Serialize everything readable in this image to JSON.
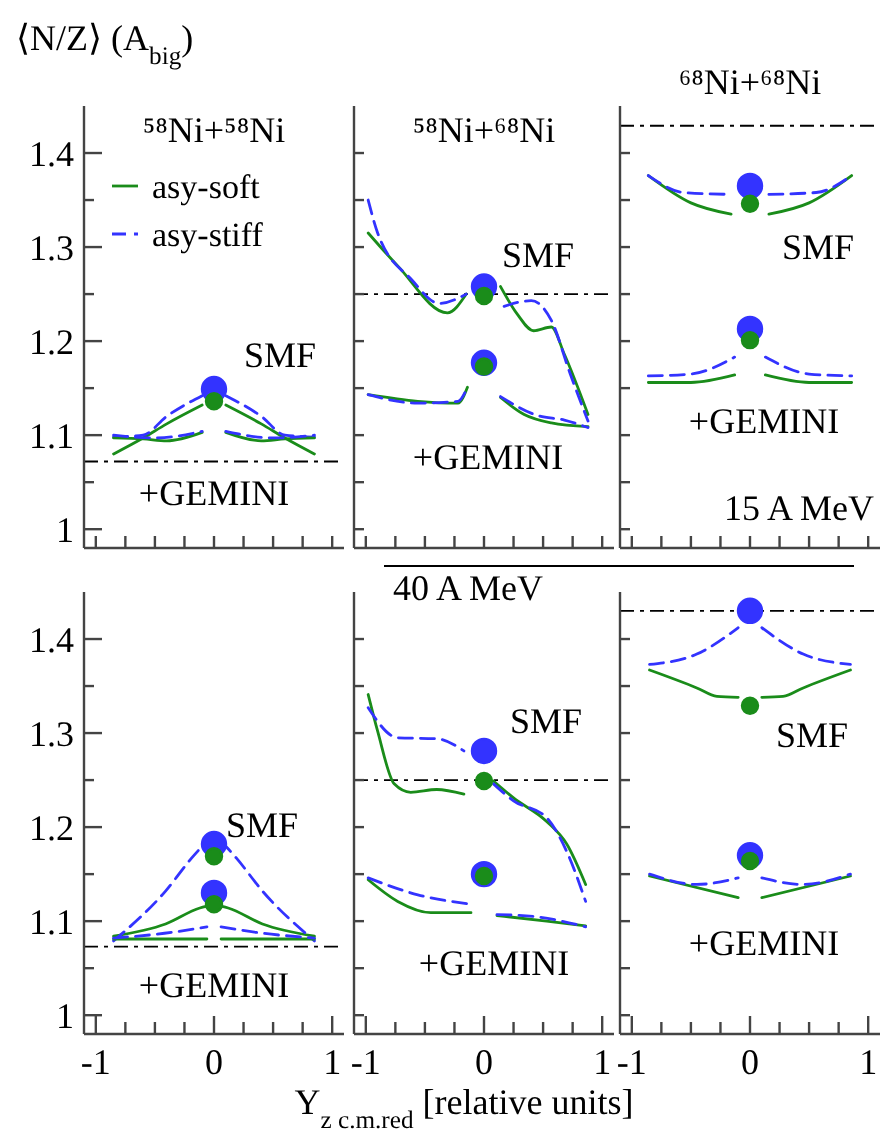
{
  "chart_data": [
    {
      "type": "line",
      "title": "⁵⁸Ni+⁵⁸Ni",
      "ylabel": "⟨N/Z⟩ (A$_{big}$)",
      "xlim": [
        -1.1,
        1.1
      ],
      "ylim": [
        0.98,
        1.45
      ],
      "xticks": [
        {
          "value": -1,
          "label": null
        },
        {
          "value": -0.75,
          "label": null
        },
        {
          "value": -0.5,
          "label": null
        },
        {
          "value": -0.25,
          "label": null
        },
        {
          "value": 0,
          "label": null
        },
        {
          "value": 0.25,
          "label": null
        },
        {
          "value": 0.5,
          "label": null
        },
        {
          "value": 0.75,
          "label": null
        },
        {
          "value": 1,
          "label": null
        }
      ],
      "yticks": [
        1,
        {
          "value": 1.05,
          "label": null
        },
        1.1,
        {
          "value": 1.15,
          "label": null
        },
        1.2,
        {
          "value": 1.25,
          "label": null
        },
        1.3,
        {
          "value": 1.35,
          "label": null
        },
        1.4
      ],
      "tick_labels": "y",
      "legend": "top left",
      "ref_lines": [
        {
          "axis": "y",
          "value": 1.072,
          "line_style": "dashed",
          "color": "#000000"
        }
      ],
      "annotations": [
        "SMF",
        "+GEMINI"
      ],
      "series": [
        {
          "name": "asy-soft",
          "color": "#1a8c1a",
          "x": [
            -0.85,
            -0.6,
            -0.4,
            -0.1,
            0,
            0.1,
            0.4,
            0.6,
            0.85
          ],
          "values": [
            1.08,
            1.097,
            1.112,
            1.132,
            null,
            1.132,
            1.112,
            1.097,
            1.08
          ]
        },
        {
          "name": "asy-stiff",
          "color": "#3333ff",
          "line_style": "dashed",
          "x": [
            -0.85,
            -0.6,
            -0.4,
            -0.1,
            0,
            0.1,
            0.4,
            0.6,
            0.85
          ],
          "values": [
            1.098,
            1.1,
            1.12,
            1.142,
            null,
            1.142,
            1.12,
            1.1,
            1.098
          ]
        },
        {
          "color": "#1a8c1a",
          "x": [
            -0.85,
            -0.6,
            -0.4,
            -0.1,
            0,
            0.1,
            0.4,
            0.6,
            0.85
          ],
          "values": [
            1.097,
            1.096,
            1.094,
            1.103,
            null,
            1.103,
            1.094,
            1.096,
            1.097
          ]
        },
        {
          "color": "#3333ff",
          "line_style": "dashed",
          "x": [
            -0.85,
            -0.5,
            -0.1,
            0,
            0.1,
            0.5,
            0.85
          ],
          "values": [
            1.1,
            1.097,
            1.104,
            null,
            1.104,
            1.097,
            1.1
          ]
        },
        {
          "type": "scatter",
          "marker": "circle",
          "color": "#3333ff",
          "x": [
            0
          ],
          "values": [
            1.149
          ]
        },
        {
          "type": "scatter",
          "marker": "circle",
          "color": "#1a8c1a",
          "x": [
            0
          ],
          "values": [
            1.136
          ]
        }
      ]
    },
    {
      "type": "line",
      "title": "⁵⁸Ni+⁶⁸Ni",
      "xlim": [
        -1.1,
        1.1
      ],
      "ylim": [
        0.98,
        1.45
      ],
      "xticks": [
        {
          "value": -1,
          "label": null
        },
        {
          "value": -0.75,
          "label": null
        },
        {
          "value": -0.5,
          "label": null
        },
        {
          "value": -0.25,
          "label": null
        },
        {
          "value": 0,
          "label": null
        },
        {
          "value": 0.25,
          "label": null
        },
        {
          "value": 0.5,
          "label": null
        },
        {
          "value": 0.75,
          "label": null
        },
        {
          "value": 1,
          "label": null
        }
      ],
      "yticks": [
        {
          "value": 1,
          "label": null
        },
        {
          "value": 1.05,
          "label": null
        },
        {
          "value": 1.1,
          "label": null
        },
        {
          "value": 1.15,
          "label": null
        },
        {
          "value": 1.2,
          "label": null
        },
        {
          "value": 1.25,
          "label": null
        },
        {
          "value": 1.3,
          "label": null
        },
        {
          "value": 1.35,
          "label": null
        },
        {
          "value": 1.4,
          "label": null
        }
      ],
      "tick_labels": false,
      "ref_lines": [
        {
          "axis": "y",
          "value": 1.25,
          "line_style": "dashed",
          "color": "#000000"
        }
      ],
      "annotations": [
        "SMF",
        "+GEMINI"
      ],
      "series": [
        {
          "color": "#1a8c1a",
          "x": [
            -0.98,
            -0.73,
            -0.31,
            -0.15,
            0,
            0.14,
            0.28,
            0.42,
            0.57,
            0.68,
            0.88
          ],
          "values": [
            1.315,
            1.28,
            1.23,
            1.25,
            null,
            1.258,
            1.229,
            1.211,
            1.215,
            1.186,
            1.122
          ]
        },
        {
          "color": "#3333ff",
          "line_style": "dashed",
          "x": [
            -0.98,
            -0.9,
            -0.61,
            -0.38,
            -0.15,
            0,
            0.17,
            0.4,
            0.57,
            0.73,
            0.88
          ],
          "values": [
            1.35,
            1.315,
            1.265,
            1.24,
            1.25,
            null,
            1.237,
            1.243,
            1.222,
            1.165,
            1.115
          ]
        },
        {
          "color": "#1a8c1a",
          "x": [
            -0.98,
            -0.56,
            -0.22,
            -0.14,
            0,
            0.14,
            0.34,
            0.57,
            0.88
          ],
          "values": [
            1.143,
            1.136,
            1.134,
            1.151,
            null,
            1.14,
            1.122,
            1.113,
            1.109
          ]
        },
        {
          "color": "#3333ff",
          "line_style": "dashed",
          "x": [
            -0.98,
            -0.56,
            -0.22,
            -0.14,
            0,
            0.14,
            0.45,
            0.68,
            0.88
          ],
          "values": [
            1.143,
            1.134,
            1.136,
            1.151,
            null,
            1.141,
            1.121,
            1.116,
            1.108
          ]
        },
        {
          "type": "scatter",
          "marker": "circle",
          "color": "#3333ff",
          "x": [
            0,
            0
          ],
          "values": [
            1.258,
            1.177
          ]
        },
        {
          "type": "scatter",
          "marker": "circle",
          "color": "#1a8c1a",
          "x": [
            0,
            0
          ],
          "values": [
            1.248,
            1.173
          ]
        }
      ]
    },
    {
      "type": "line",
      "title": "⁶⁸Ni+⁶⁸Ni",
      "xlim": [
        -1.1,
        1.1
      ],
      "ylim": [
        0.98,
        1.45
      ],
      "xticks": [
        {
          "value": -1,
          "label": null
        },
        {
          "value": -0.75,
          "label": null
        },
        {
          "value": -0.5,
          "label": null
        },
        {
          "value": -0.25,
          "label": null
        },
        {
          "value": 0,
          "label": null
        },
        {
          "value": 0.25,
          "label": null
        },
        {
          "value": 0.5,
          "label": null
        },
        {
          "value": 0.75,
          "label": null
        },
        {
          "value": 1,
          "label": null
        }
      ],
      "yticks": [
        {
          "value": 1,
          "label": null
        },
        {
          "value": 1.05,
          "label": null
        },
        {
          "value": 1.1,
          "label": null
        },
        {
          "value": 1.15,
          "label": null
        },
        {
          "value": 1.2,
          "label": null
        },
        {
          "value": 1.25,
          "label": null
        },
        {
          "value": 1.3,
          "label": null
        },
        {
          "value": 1.35,
          "label": null
        },
        {
          "value": 1.4,
          "label": null
        }
      ],
      "tick_labels": false,
      "ref_lines": [
        {
          "axis": "y",
          "value": 1.429,
          "line_style": "dashed",
          "color": "#000000"
        }
      ],
      "annotations": [
        "SMF",
        "+GEMINI",
        "15 A MeV"
      ],
      "series": [
        {
          "color": "#1a8c1a",
          "x": [
            -0.86,
            -0.5,
            -0.16,
            0,
            0.16,
            0.5,
            0.86
          ],
          "values": [
            1.376,
            1.347,
            1.335,
            null,
            1.335,
            1.347,
            1.376
          ]
        },
        {
          "color": "#3333ff",
          "line_style": "dashed",
          "x": [
            -0.86,
            -0.56,
            -0.16,
            0,
            0.16,
            0.56,
            0.86
          ],
          "values": [
            1.376,
            1.358,
            1.356,
            null,
            1.356,
            1.358,
            1.376
          ]
        },
        {
          "color": "#1a8c1a",
          "x": [
            -0.86,
            -0.5,
            -0.13,
            0,
            0.13,
            0.5,
            0.86
          ],
          "values": [
            1.156,
            1.156,
            1.164,
            null,
            1.164,
            1.156,
            1.156
          ]
        },
        {
          "color": "#3333ff",
          "line_style": "dashed",
          "x": [
            -0.86,
            -0.5,
            -0.13,
            0,
            0.13,
            0.5,
            0.86
          ],
          "values": [
            1.163,
            1.165,
            1.183,
            null,
            1.183,
            1.165,
            1.163
          ]
        },
        {
          "type": "scatter",
          "marker": "circle",
          "color": "#3333ff",
          "x": [
            0,
            0
          ],
          "values": [
            1.365,
            1.213
          ]
        },
        {
          "type": "scatter",
          "marker": "circle",
          "color": "#1a8c1a",
          "x": [
            0,
            0
          ],
          "values": [
            1.346,
            1.201
          ]
        }
      ]
    },
    {
      "type": "line",
      "xlim": [
        -1.1,
        1.1
      ],
      "ylim": [
        0.98,
        1.45
      ],
      "xticks": [
        {
          "value": -1,
          "label": "-1"
        },
        {
          "value": -0.75,
          "label": null
        },
        {
          "value": -0.5,
          "label": null
        },
        {
          "value": -0.25,
          "label": null
        },
        {
          "value": 0,
          "label": "0"
        },
        {
          "value": 0.25,
          "label": null
        },
        {
          "value": 0.5,
          "label": null
        },
        {
          "value": 0.75,
          "label": null
        },
        {
          "value": 1,
          "label": "1"
        }
      ],
      "yticks": [
        1,
        {
          "value": 1.05,
          "label": null
        },
        1.1,
        {
          "value": 1.15,
          "label": null
        },
        1.2,
        {
          "value": 1.25,
          "label": null
        },
        1.3,
        {
          "value": 1.35,
          "label": null
        },
        1.4
      ],
      "ref_lines": [
        {
          "axis": "y",
          "value": 1.073,
          "line_style": "dashed",
          "color": "#000000"
        }
      ],
      "annotations": [
        "SMF",
        "+GEMINI"
      ],
      "series": [
        {
          "color": "#1a8c1a",
          "x": [
            -0.85,
            -0.41,
            -0.12,
            -0.06,
            0,
            0.06,
            0.12,
            0.41,
            0.85
          ],
          "values": [
            1.084,
            1.097,
            1.114,
            1.116,
            null,
            1.116,
            1.114,
            1.097,
            1.084
          ]
        },
        {
          "color": "#3333ff",
          "line_style": "dashed",
          "x": [
            -0.85,
            -0.41,
            -0.19,
            -0.06,
            0,
            0.06,
            0.19,
            0.41,
            0.85
          ],
          "values": [
            1.079,
            1.132,
            1.167,
            1.185,
            null,
            1.185,
            1.167,
            1.132,
            1.079
          ]
        },
        {
          "color": "#1a8c1a",
          "x": [
            -0.85,
            -0.06,
            0,
            0.06,
            0.85
          ],
          "values": [
            1.081,
            1.081,
            null,
            1.081,
            1.081
          ]
        },
        {
          "color": "#3333ff",
          "line_style": "dashed",
          "x": [
            -0.85,
            -0.36,
            -0.06,
            0,
            0.06,
            0.36,
            0.85
          ],
          "values": [
            1.082,
            1.088,
            1.094,
            null,
            1.094,
            1.088,
            1.082
          ]
        },
        {
          "type": "scatter",
          "marker": "circle",
          "color": "#3333ff",
          "x": [
            0,
            0
          ],
          "values": [
            1.182,
            1.13
          ]
        },
        {
          "type": "scatter",
          "marker": "circle",
          "color": "#1a8c1a",
          "x": [
            0,
            0
          ],
          "values": [
            1.169,
            1.118
          ]
        }
      ]
    },
    {
      "type": "line",
      "xlabel": "Y$_{z c.m.red}$ [relative units]",
      "xlim": [
        -1.1,
        1.1
      ],
      "ylim": [
        0.98,
        1.45
      ],
      "xticks": [
        {
          "value": -1,
          "label": "-1"
        },
        {
          "value": -0.75,
          "label": null
        },
        {
          "value": -0.5,
          "label": null
        },
        {
          "value": -0.25,
          "label": null
        },
        {
          "value": 0,
          "label": "0"
        },
        {
          "value": 0.25,
          "label": null
        },
        {
          "value": 0.5,
          "label": null
        },
        {
          "value": 0.75,
          "label": null
        },
        {
          "value": 1,
          "label": "1"
        }
      ],
      "yticks": [
        {
          "value": 1,
          "label": null
        },
        {
          "value": 1.05,
          "label": null
        },
        {
          "value": 1.1,
          "label": null
        },
        {
          "value": 1.15,
          "label": null
        },
        {
          "value": 1.2,
          "label": null
        },
        {
          "value": 1.25,
          "label": null
        },
        {
          "value": 1.3,
          "label": null
        },
        {
          "value": 1.35,
          "label": null
        },
        {
          "value": 1.4,
          "label": null
        }
      ],
      "tick_labels": "x",
      "ref_lines": [
        {
          "axis": "y",
          "value": 1.25,
          "line_style": "dashed",
          "color": "#000000"
        }
      ],
      "annotations": [
        "SMF",
        "+GEMINI",
        "40 A MeV"
      ],
      "series": [
        {
          "color": "#1a8c1a",
          "x": [
            -0.98,
            -0.9,
            -0.76,
            -0.62,
            -0.4,
            -0.17,
            0,
            0.08,
            0.25,
            0.53,
            0.7,
            0.86
          ],
          "values": [
            1.341,
            1.302,
            1.246,
            1.237,
            1.24,
            1.235,
            null,
            1.249,
            1.231,
            1.206,
            1.182,
            1.139
          ]
        },
        {
          "color": "#3333ff",
          "line_style": "dashed",
          "x": [
            -0.98,
            -0.73,
            -0.4,
            -0.17,
            0,
            0.08,
            0.25,
            0.53,
            0.7,
            0.86
          ],
          "values": [
            1.327,
            1.295,
            1.294,
            1.281,
            null,
            1.246,
            1.228,
            1.21,
            1.174,
            1.121
          ]
        },
        {
          "color": "#1a8c1a",
          "x": [
            -0.98,
            -0.73,
            -0.45,
            -0.11,
            0,
            0.11,
            0.53,
            0.86
          ],
          "values": [
            1.144,
            1.121,
            1.109,
            1.109,
            null,
            1.106,
            1.1,
            1.095
          ]
        },
        {
          "color": "#3333ff",
          "line_style": "dashed",
          "x": [
            -0.98,
            -0.56,
            -0.11,
            0,
            0.11,
            0.42,
            0.86
          ],
          "values": [
            1.146,
            1.128,
            1.118,
            null,
            1.107,
            1.105,
            1.094
          ]
        },
        {
          "type": "scatter",
          "marker": "circle",
          "color": "#3333ff",
          "x": [
            0,
            0
          ],
          "values": [
            1.281,
            1.15
          ]
        },
        {
          "type": "scatter",
          "marker": "circle",
          "color": "#1a8c1a",
          "x": [
            0,
            0
          ],
          "values": [
            1.249,
            1.148
          ]
        }
      ]
    },
    {
      "type": "line",
      "xlim": [
        -1.1,
        1.1
      ],
      "ylim": [
        0.98,
        1.45
      ],
      "xticks": [
        {
          "value": -1,
          "label": "-1"
        },
        {
          "value": -0.75,
          "label": null
        },
        {
          "value": -0.5,
          "label": null
        },
        {
          "value": -0.25,
          "label": null
        },
        {
          "value": 0,
          "label": "0"
        },
        {
          "value": 0.25,
          "label": null
        },
        {
          "value": 0.5,
          "label": null
        },
        {
          "value": 0.75,
          "label": null
        },
        {
          "value": 1,
          "label": "1"
        }
      ],
      "yticks": [
        {
          "value": 1,
          "label": null
        },
        {
          "value": 1.05,
          "label": null
        },
        {
          "value": 1.1,
          "label": null
        },
        {
          "value": 1.15,
          "label": null
        },
        {
          "value": 1.2,
          "label": null
        },
        {
          "value": 1.25,
          "label": null
        },
        {
          "value": 1.3,
          "label": null
        },
        {
          "value": 1.35,
          "label": null
        },
        {
          "value": 1.4,
          "label": null
        }
      ],
      "tick_labels": "x",
      "ref_lines": [
        {
          "axis": "y",
          "value": 1.43,
          "line_style": "dashed",
          "color": "#000000"
        }
      ],
      "annotations": [
        "SMF",
        "+GEMINI"
      ],
      "series": [
        {
          "color": "#1a8c1a",
          "x": [
            -0.85,
            -0.45,
            -0.28,
            -0.1,
            0,
            0.1,
            0.28,
            0.45,
            0.85
          ],
          "values": [
            1.367,
            1.348,
            1.339,
            1.338,
            null,
            1.338,
            1.339,
            1.348,
            1.367
          ]
        },
        {
          "color": "#3333ff",
          "line_style": "dashed",
          "x": [
            -0.85,
            -0.45,
            -0.1,
            0,
            0.1,
            0.45,
            0.85
          ],
          "values": [
            1.373,
            1.384,
            1.412,
            null,
            1.412,
            1.384,
            1.373
          ]
        },
        {
          "color": "#1a8c1a",
          "x": [
            -0.85,
            -0.1,
            0,
            0.1,
            0.85
          ],
          "values": [
            1.148,
            1.125,
            null,
            1.125,
            1.148
          ]
        },
        {
          "color": "#3333ff",
          "line_style": "dashed",
          "x": [
            -0.85,
            -0.45,
            -0.1,
            0,
            0.1,
            0.45,
            0.85
          ],
          "values": [
            1.15,
            1.139,
            1.146,
            null,
            1.146,
            1.139,
            1.15
          ]
        },
        {
          "type": "scatter",
          "marker": "circle",
          "color": "#3333ff",
          "x": [
            0,
            0
          ],
          "values": [
            1.43,
            1.17
          ]
        },
        {
          "type": "scatter",
          "marker": "circle",
          "color": "#1a8c1a",
          "x": [
            0,
            0
          ],
          "values": [
            1.329,
            1.164
          ]
        }
      ]
    }
  ]
}
